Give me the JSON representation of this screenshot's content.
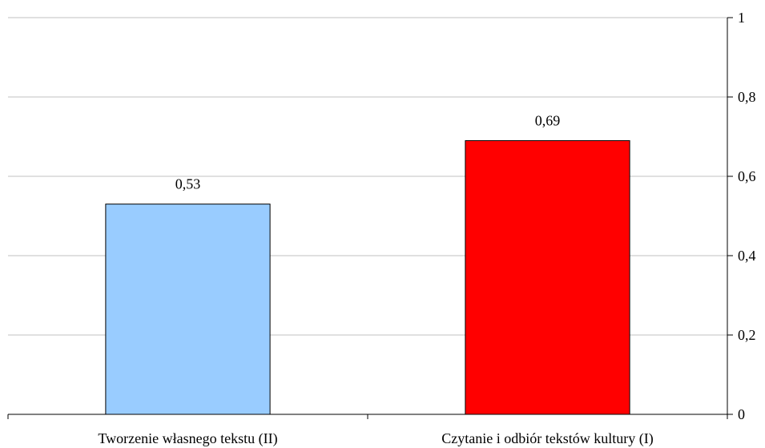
{
  "chart_data": {
    "type": "bar",
    "title": "",
    "xlabel": "",
    "ylabel": "",
    "categories": [
      "Tworzenie własnego tekstu (II)",
      "Czytanie i odbiór tekstów kultury (I)"
    ],
    "values": [
      0.53,
      0.69
    ],
    "data_labels": [
      "0,53",
      "0,69"
    ],
    "bar_colors": [
      "#99ccff",
      "#ff0000"
    ],
    "ylim": [
      0,
      1
    ],
    "y_ticks": [
      0,
      0.2,
      0.4,
      0.6,
      0.8,
      1
    ],
    "y_tick_labels": [
      "0",
      "0,2",
      "0,4",
      "0,6",
      "0,8",
      "1"
    ],
    "y_axis_position": "right",
    "grid": true,
    "legend": "none"
  }
}
